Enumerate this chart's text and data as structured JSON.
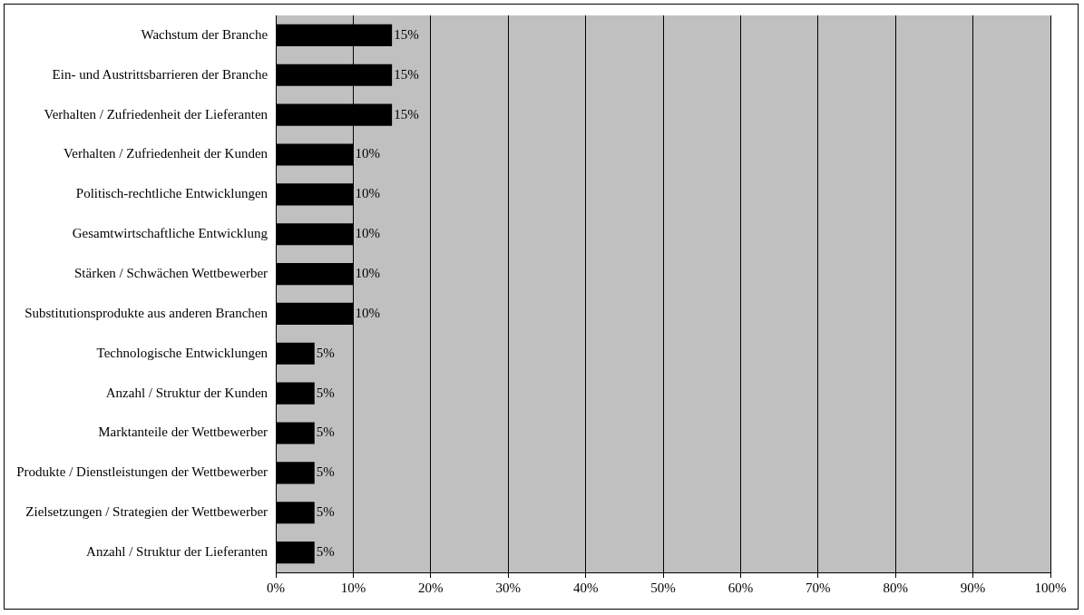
{
  "chart_data": {
    "type": "bar",
    "orientation": "horizontal",
    "categories": [
      "Wachstum der Branche",
      "Ein- und Austrittsbarrieren der Branche",
      "Verhalten / Zufriedenheit der Lieferanten",
      "Verhalten / Zufriedenheit der Kunden",
      "Politisch-rechtliche Entwicklungen",
      "Gesamtwirtschaftliche Entwicklung",
      "Stärken / Schwächen Wettbewerber",
      "Substitutionsprodukte aus anderen Branchen",
      "Technologische Entwicklungen",
      "Anzahl / Struktur der Kunden",
      "Marktanteile der Wettbewerber",
      "Produkte / Dienstleistungen der Wettbewerber",
      "Zielsetzungen / Strategien der Wettbewerber",
      "Anzahl / Struktur der Lieferanten"
    ],
    "values": [
      15,
      15,
      15,
      10,
      10,
      10,
      10,
      10,
      5,
      5,
      5,
      5,
      5,
      5
    ],
    "value_labels": [
      "15%",
      "15%",
      "15%",
      "10%",
      "10%",
      "10%",
      "10%",
      "10%",
      "5%",
      "5%",
      "5%",
      "5%",
      "5%",
      "5%"
    ],
    "color": "#000000",
    "xlim": [
      0,
      100
    ],
    "xticks": [
      {
        "value": 0,
        "label": "0%"
      },
      {
        "value": 10,
        "label": "10%"
      },
      {
        "value": 20,
        "label": "20%"
      },
      {
        "value": 30,
        "label": "30%"
      },
      {
        "value": 40,
        "label": "40%"
      },
      {
        "value": 50,
        "label": "50%"
      },
      {
        "value": 60,
        "label": "60%"
      },
      {
        "value": 70,
        "label": "70%"
      },
      {
        "value": 80,
        "label": "80%"
      },
      {
        "value": 90,
        "label": "90%"
      },
      {
        "value": 100,
        "label": "100%"
      }
    ],
    "grid": "x",
    "legend": false
  }
}
